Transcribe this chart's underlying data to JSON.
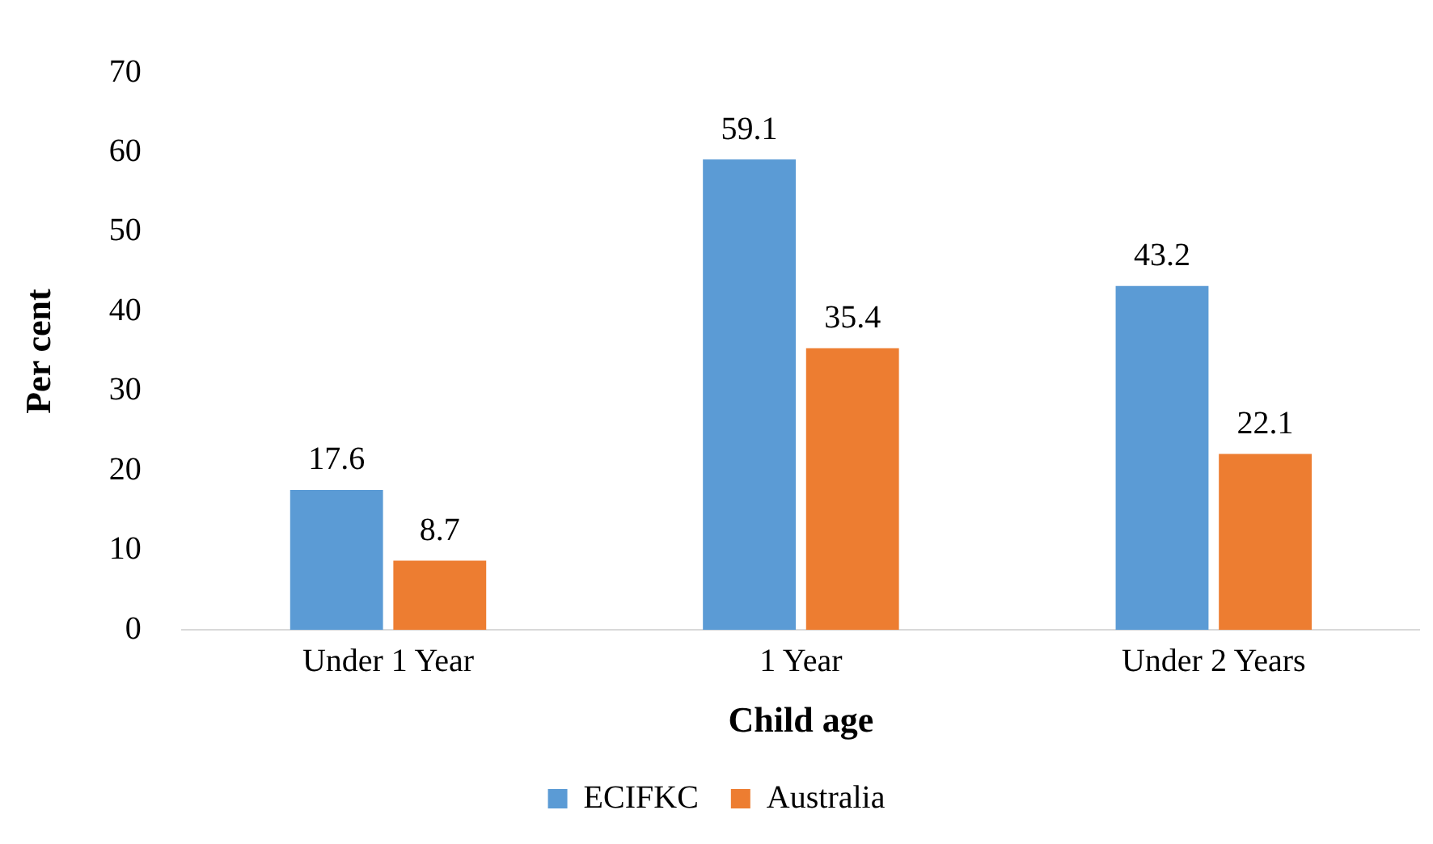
{
  "chart_data": {
    "type": "bar",
    "xlabel": "Child age",
    "ylabel": "Per cent",
    "categories": [
      "Under 1 Year",
      "1 Year",
      "Under 2 Years"
    ],
    "series": [
      {
        "name": "ECIFKC",
        "color": "#5b9bd5",
        "values": [
          17.6,
          59.1,
          43.2
        ]
      },
      {
        "name": "Australia",
        "color": "#ed7d31",
        "values": [
          8.7,
          35.4,
          22.1
        ]
      }
    ],
    "ylim": [
      0,
      70
    ],
    "yticks": [
      0,
      10,
      20,
      30,
      40,
      50,
      60,
      70
    ],
    "grid": false,
    "legend": "bottom",
    "data_labels": true
  }
}
